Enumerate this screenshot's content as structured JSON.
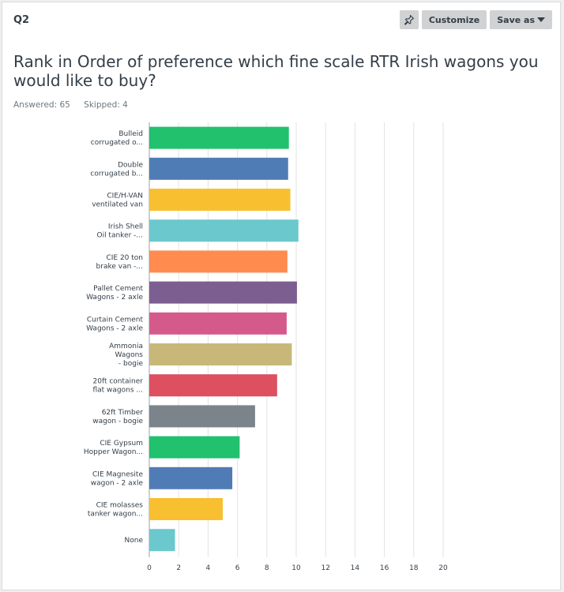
{
  "question": {
    "number": "Q2",
    "title": "Rank in Order of preference which fine scale RTR Irish wagons you would like to buy?",
    "answered_label": "Answered: 65",
    "skipped_label": "Skipped: 4"
  },
  "toolbar": {
    "customize_label": "Customize",
    "save_as_label": "Save as"
  },
  "chart_data": {
    "type": "bar",
    "orientation": "horizontal",
    "title": "",
    "xlabel": "",
    "ylabel": "",
    "xlim": [
      0,
      20
    ],
    "ticks": [
      0,
      2,
      4,
      6,
      8,
      10,
      12,
      14,
      16,
      18,
      20
    ],
    "grid": true,
    "bars": [
      {
        "label": [
          "Bulleid",
          "corrugated o..."
        ],
        "value": 9.5,
        "color": "#21c16e"
      },
      {
        "label": [
          "Double",
          "corrugated b..."
        ],
        "value": 9.45,
        "color": "#507cb6"
      },
      {
        "label": [
          "CIE/H-VAN",
          "ventilated van"
        ],
        "value": 9.6,
        "color": "#f8bf30"
      },
      {
        "label": [
          "Irish Shell",
          "Oil tanker -..."
        ],
        "value": 10.15,
        "color": "#6bc8cd"
      },
      {
        "label": [
          "CIE 20 ton",
          "brake van -..."
        ],
        "value": 9.4,
        "color": "#ff8b4f"
      },
      {
        "label": [
          "Pallet Cement",
          "Wagons - 2 axle"
        ],
        "value": 10.05,
        "color": "#7d5e90"
      },
      {
        "label": [
          "Curtain Cement",
          "Wagons - 2 axle"
        ],
        "value": 9.35,
        "color": "#d55a8c"
      },
      {
        "label": [
          "Ammonia",
          "Wagons",
          "- bogie"
        ],
        "value": 9.7,
        "color": "#c7b879"
      },
      {
        "label": [
          "20ft container",
          "flat wagons ..."
        ],
        "value": 8.7,
        "color": "#dc5060"
      },
      {
        "label": [
          "62ft Timber",
          "wagon - bogie"
        ],
        "value": 7.2,
        "color": "#7b848b"
      },
      {
        "label": [
          "CIE Gypsum",
          "Hopper Wagon..."
        ],
        "value": 6.15,
        "color": "#21c16e"
      },
      {
        "label": [
          "CIE Magnesite",
          "wagon - 2 axle"
        ],
        "value": 5.65,
        "color": "#507cb6"
      },
      {
        "label": [
          "CIE molasses",
          "tanker wagon..."
        ],
        "value": 5.0,
        "color": "#f8bf30"
      },
      {
        "label": [
          "None"
        ],
        "value": 1.75,
        "color": "#6bc8cd"
      }
    ]
  }
}
